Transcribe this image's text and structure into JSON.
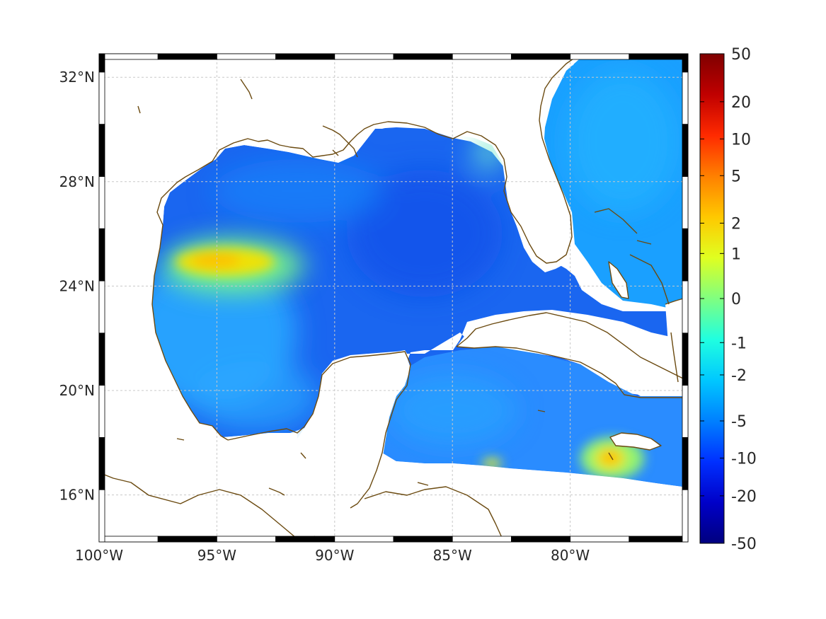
{
  "map": {
    "lon_range": [
      -100,
      -75
    ],
    "lat_range": [
      14.2,
      32.9
    ],
    "lon_ticks": [
      {
        "value": -100,
        "label": "100°W"
      },
      {
        "value": -95,
        "label": "95°W"
      },
      {
        "value": -90,
        "label": "90°W"
      },
      {
        "value": -85,
        "label": "85°W"
      },
      {
        "value": -80,
        "label": "80°W"
      }
    ],
    "lat_ticks": [
      {
        "value": 32,
        "label": "32°N"
      },
      {
        "value": 28,
        "label": "28°N"
      },
      {
        "value": 24,
        "label": "24°N"
      },
      {
        "value": 20,
        "label": "20°N"
      },
      {
        "value": 16,
        "label": "16°N"
      }
    ],
    "grid": true,
    "coastline_color": "#6b4a10",
    "frame_pattern": "alternating black and white bars"
  },
  "colorbar": {
    "colormap": "jet",
    "scale": "symmetric nonlinear",
    "ticks": [
      "50",
      "20",
      "10",
      "5",
      "2",
      "1",
      "0",
      "-1",
      "-2",
      "-5",
      "-10",
      "-20",
      "-50"
    ],
    "colors": [
      "#7f0000",
      "#c00000",
      "#ff2a00",
      "#ff8000",
      "#ffc800",
      "#e0ff20",
      "#80ff80",
      "#20ffe0",
      "#00c8ff",
      "#0080ff",
      "#0030ff",
      "#0000c8",
      "#00007f"
    ]
  },
  "field_colors": {
    "gulf_base": "#1a66f0",
    "gulf_light": "#1a90ff",
    "west_gulf": "#2aa8ff",
    "anomaly_high": "#f5e000",
    "caribbean": "#2a8cff",
    "atlantic": "#1aa0ff"
  },
  "chart_data": {
    "type": "heatmap",
    "title": "",
    "xlabel": "",
    "ylabel": "",
    "xlim": [
      -100,
      -75
    ],
    "ylim": [
      14.2,
      32.9
    ],
    "colorbar_range": [
      -50,
      50
    ],
    "features": [
      {
        "description": "positive anomaly western Gulf",
        "lon": -94.5,
        "lat": 25.2,
        "value": 1.5
      },
      {
        "description": "positive anomaly south of Jamaica",
        "lon": -78.3,
        "lat": 17.5,
        "value": 1.5
      },
      {
        "description": "small positive spot off Honduras",
        "lon": -83.5,
        "lat": 17.3,
        "value": 1
      },
      {
        "description": "central Gulf minimum",
        "lon": -87,
        "lat": 26,
        "value": -8
      }
    ]
  }
}
